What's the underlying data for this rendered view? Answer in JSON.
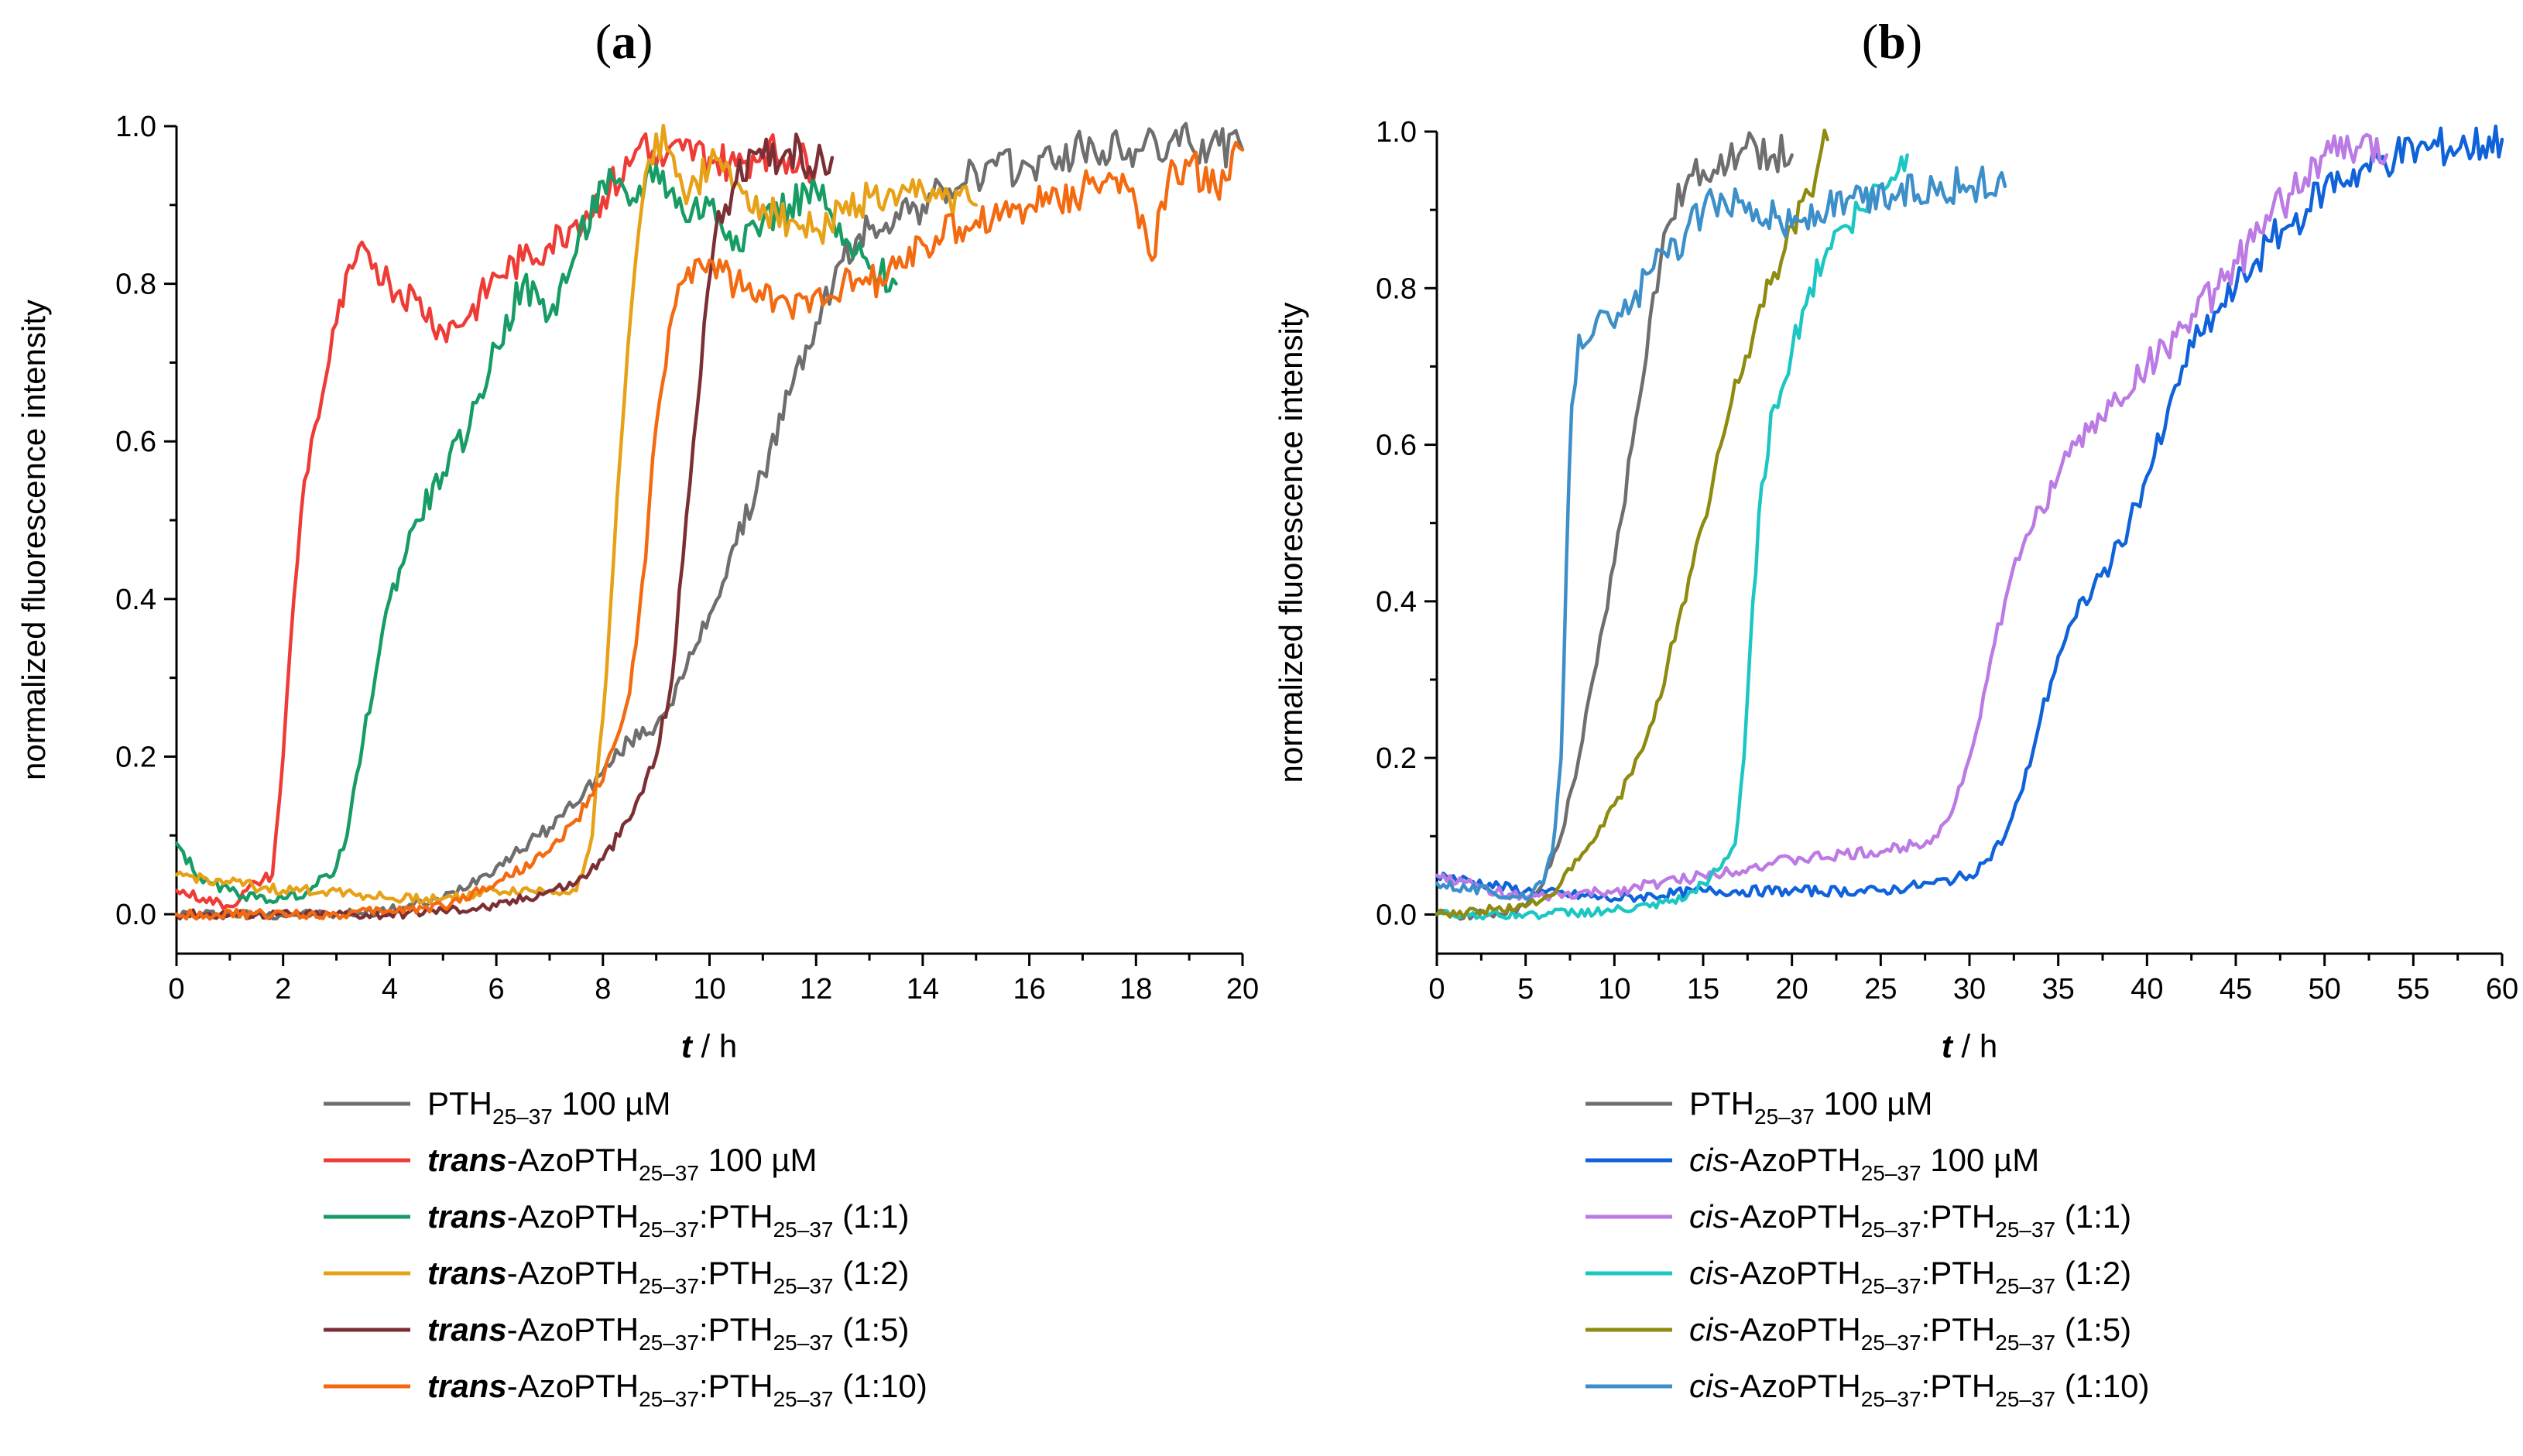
{
  "chart_data": [
    {
      "type": "line",
      "panel_label": "(a)",
      "panel_letter": "a",
      "xlabel_italic": "t",
      "xlabel_rest": " / h",
      "ylabel": "normalized fluorescence intensity",
      "xlim": [
        0,
        20
      ],
      "ylim": [
        -0.05,
        1.0
      ],
      "xticks": [
        "0",
        "2",
        "4",
        "6",
        "8",
        "10",
        "12",
        "14",
        "16",
        "18",
        "20"
      ],
      "yticks": [
        "0.0",
        "0.2",
        "0.4",
        "0.6",
        "0.8",
        "1.0"
      ],
      "legend_position": "bottom",
      "series": [
        {
          "name": "PTH25–37 100 µM",
          "legend": {
            "prefix": "",
            "main": "PTH",
            "sub": "25–37",
            "rest": " 100 µM",
            "sub2": "",
            "tail": ""
          },
          "color": "#6e6e6e",
          "x": [
            0,
            3,
            4,
            5,
            6,
            7,
            8,
            8.5,
            9,
            9.5,
            10,
            10.5,
            11,
            11.5,
            12,
            12.5,
            13,
            13.5,
            14,
            14.5,
            15,
            16,
            17,
            18,
            19,
            20
          ],
          "y": [
            0,
            0,
            0.005,
            0.02,
            0.06,
            0.11,
            0.18,
            0.22,
            0.24,
            0.3,
            0.38,
            0.47,
            0.56,
            0.66,
            0.75,
            0.83,
            0.87,
            0.89,
            0.9,
            0.92,
            0.94,
            0.95,
            0.97,
            0.97,
            0.98,
            0.97
          ]
        },
        {
          "name": "trans-AzoPTH25–37 100 µM",
          "legend": {
            "prefix": "trans",
            "main": "-AzoPTH",
            "sub": "25–37",
            "rest": " 100 µM",
            "sub2": "",
            "tail": ""
          },
          "color": "#ef3b36",
          "x": [
            0,
            0.5,
            1,
            1.5,
            1.8,
            2,
            2.2,
            2.4,
            2.6,
            2.8,
            3,
            3.3,
            3.6,
            4,
            4.5,
            5,
            5.5,
            6,
            6.5,
            7,
            7.5,
            8,
            8.5,
            8.8,
            9,
            9.5,
            10,
            10.5,
            11,
            11.5,
            12
          ],
          "y": [
            0.03,
            0.02,
            0.01,
            0.04,
            0.05,
            0.2,
            0.4,
            0.55,
            0.62,
            0.68,
            0.75,
            0.82,
            0.84,
            0.8,
            0.78,
            0.74,
            0.76,
            0.81,
            0.83,
            0.85,
            0.88,
            0.91,
            0.95,
            0.99,
            0.95,
            0.97,
            0.96,
            0.95,
            0.97,
            0.96,
            0.95
          ]
        },
        {
          "name": "trans-AzoPTH25–37:PTH25–37 (1:1)",
          "legend": {
            "prefix": "trans",
            "main": "-AzoPTH",
            "sub": "25–37",
            "rest": ":PTH",
            "sub2": "25–37",
            "tail": " (1:1)"
          },
          "color": "#169c64",
          "x": [
            0,
            0.5,
            1,
            1.5,
            2,
            2.5,
            3,
            3.2,
            3.5,
            3.8,
            4,
            4.5,
            5,
            5.5,
            6,
            6.5,
            7,
            7.5,
            8,
            8.5,
            9,
            9.5,
            10,
            10.5,
            11,
            11.5,
            12,
            12.5,
            13,
            13.5
          ],
          "y": [
            0.09,
            0.04,
            0.03,
            0.02,
            0.02,
            0.03,
            0.06,
            0.1,
            0.22,
            0.33,
            0.4,
            0.5,
            0.56,
            0.62,
            0.72,
            0.8,
            0.76,
            0.84,
            0.93,
            0.9,
            0.95,
            0.89,
            0.9,
            0.86,
            0.88,
            0.9,
            0.92,
            0.85,
            0.82,
            0.8
          ]
        },
        {
          "name": "trans-AzoPTH25–37:PTH25–37 (1:2)",
          "legend": {
            "prefix": "trans",
            "main": "-AzoPTH",
            "sub": "25–37",
            "rest": ":PTH",
            "sub2": "25–37",
            "tail": " (1:2)"
          },
          "color": "#e6a117",
          "x": [
            0,
            1,
            2,
            3,
            4,
            5,
            6,
            7,
            7.5,
            7.8,
            8,
            8.2,
            8.4,
            8.6,
            8.8,
            9,
            9.2,
            9.5,
            10,
            10.5,
            11,
            11.5,
            12,
            12.5,
            13,
            13.5,
            14,
            14.5,
            15
          ],
          "y": [
            0.05,
            0.04,
            0.03,
            0.03,
            0.02,
            0.02,
            0.03,
            0.03,
            0.03,
            0.1,
            0.25,
            0.45,
            0.65,
            0.82,
            0.94,
            0.99,
            0.97,
            0.92,
            0.95,
            0.93,
            0.9,
            0.88,
            0.87,
            0.89,
            0.91,
            0.9,
            0.92,
            0.91,
            0.9
          ]
        },
        {
          "name": "trans-AzoPTH25–37:PTH25–37 (1:5)",
          "legend": {
            "prefix": "trans",
            "main": "-AzoPTH",
            "sub": "25–37",
            "rest": ":PTH",
            "sub2": "25–37",
            "tail": " (1:5)"
          },
          "color": "#7b2f35",
          "x": [
            0,
            3,
            4,
            5,
            6,
            7,
            7.5,
            8,
            8.5,
            9,
            9.3,
            9.5,
            9.7,
            9.9,
            10.1,
            10.3,
            10.5,
            11,
            11.5,
            12,
            12.3
          ],
          "y": [
            0,
            0,
            0,
            0.005,
            0.01,
            0.03,
            0.04,
            0.07,
            0.12,
            0.2,
            0.3,
            0.45,
            0.6,
            0.75,
            0.86,
            0.9,
            0.93,
            0.96,
            0.97,
            0.95,
            0.96
          ]
        },
        {
          "name": "trans-AzoPTH25–37:PTH25–37 (1:10)",
          "legend": {
            "prefix": "trans",
            "main": "-AzoPTH",
            "sub": "25–37",
            "rest": ":PTH",
            "sub2": "25–37",
            "tail": " (1:10)"
          },
          "color": "#f46a10",
          "x": [
            0,
            3,
            4,
            5,
            6,
            7,
            7.5,
            8,
            8.5,
            8.8,
            9,
            9.3,
            9.6,
            10,
            10.5,
            11,
            11.5,
            12,
            12.5,
            13,
            13.5,
            14,
            15,
            16,
            17,
            17.5,
            18,
            18.3,
            18.6,
            19,
            19.5,
            20
          ],
          "y": [
            0,
            0,
            0.005,
            0.01,
            0.04,
            0.08,
            0.12,
            0.17,
            0.28,
            0.45,
            0.62,
            0.76,
            0.82,
            0.83,
            0.8,
            0.78,
            0.77,
            0.79,
            0.8,
            0.8,
            0.82,
            0.85,
            0.88,
            0.9,
            0.92,
            0.94,
            0.9,
            0.83,
            0.93,
            0.95,
            0.92,
            0.97
          ]
        }
      ]
    },
    {
      "type": "line",
      "panel_label": "(b)",
      "panel_letter": "b",
      "xlabel_italic": "t",
      "xlabel_rest": " / h",
      "ylabel": "normalized fluorescence intensity",
      "xlim": [
        0,
        60
      ],
      "ylim": [
        -0.05,
        1.0
      ],
      "xticks": [
        "0",
        "5",
        "10",
        "15",
        "20",
        "25",
        "30",
        "35",
        "40",
        "45",
        "50",
        "55",
        "60"
      ],
      "yticks": [
        "0.0",
        "0.2",
        "0.4",
        "0.6",
        "0.8",
        "1.0"
      ],
      "legend_position": "bottom",
      "series": [
        {
          "name": "PTH25–37 100 µM",
          "legend": {
            "prefix": "",
            "main": "PTH",
            "sub": "25–37",
            "rest": " 100 µM",
            "sub2": "",
            "tail": ""
          },
          "color": "#6e6e6e",
          "x": [
            0,
            3,
            5,
            6,
            7,
            8,
            9,
            10,
            11,
            12,
            13,
            14,
            15,
            16,
            17,
            18,
            19,
            20
          ],
          "y": [
            0,
            0,
            0.01,
            0.04,
            0.1,
            0.2,
            0.32,
            0.45,
            0.6,
            0.76,
            0.88,
            0.93,
            0.95,
            0.97,
            0.97,
            0.98,
            0.97,
            0.97
          ]
        },
        {
          "name": "cis-AzoPTH25–37 100 µM",
          "legend": {
            "prefix": "cis",
            "main": "-AzoPTH",
            "sub": "25–37",
            "rest": " 100 µM",
            "sub2": "",
            "tail": ""
          },
          "color": "#0f62d9",
          "x": [
            0,
            5,
            10,
            15,
            20,
            25,
            28,
            30,
            31,
            32,
            33,
            34,
            35,
            36,
            37,
            38,
            39,
            40,
            41,
            42,
            43,
            44,
            45,
            46,
            47,
            48,
            49,
            50,
            52,
            54,
            56,
            58,
            60
          ],
          "y": [
            0.05,
            0.03,
            0.02,
            0.03,
            0.03,
            0.03,
            0.04,
            0.05,
            0.07,
            0.1,
            0.16,
            0.25,
            0.33,
            0.38,
            0.42,
            0.45,
            0.5,
            0.56,
            0.62,
            0.7,
            0.74,
            0.77,
            0.8,
            0.83,
            0.86,
            0.88,
            0.9,
            0.93,
            0.95,
            0.97,
            0.98,
            0.98,
            0.99
          ]
        },
        {
          "name": "cis-AzoPTH25–37:PTH25–37 (1:1)",
          "legend": {
            "prefix": "cis",
            "main": "-AzoPTH",
            "sub": "25–37",
            "rest": ":PTH",
            "sub2": "25–37",
            "tail": " (1:1)"
          },
          "color": "#bc7ae4",
          "x": [
            0,
            5,
            10,
            15,
            20,
            25,
            27,
            28,
            29,
            30,
            31,
            32,
            33,
            34,
            35,
            36,
            38,
            40,
            42,
            44,
            46,
            48,
            50,
            52,
            53.5
          ],
          "y": [
            0.05,
            0.02,
            0.03,
            0.05,
            0.07,
            0.08,
            0.09,
            0.1,
            0.13,
            0.2,
            0.3,
            0.4,
            0.47,
            0.52,
            0.56,
            0.6,
            0.65,
            0.7,
            0.75,
            0.8,
            0.86,
            0.92,
            0.97,
            0.98,
            0.97
          ]
        },
        {
          "name": "cis-AzoPTH25–37:PTH25–37 (1:2)",
          "legend": {
            "prefix": "cis",
            "main": "-AzoPTH",
            "sub": "25–37",
            "rest": ":PTH",
            "sub2": "25–37",
            "tail": " (1:2)"
          },
          "color": "#1cc7c3",
          "x": [
            0,
            5,
            10,
            12,
            14,
            15,
            16,
            16.8,
            17.3,
            17.8,
            18.3,
            19,
            20,
            21,
            22,
            23,
            24,
            25,
            26,
            26.5
          ],
          "y": [
            0,
            0,
            0.005,
            0.01,
            0.02,
            0.04,
            0.06,
            0.09,
            0.2,
            0.4,
            0.55,
            0.65,
            0.72,
            0.8,
            0.85,
            0.88,
            0.9,
            0.93,
            0.95,
            0.97
          ]
        },
        {
          "name": "cis-AzoPTH25–37:PTH25–37 (1:5)",
          "legend": {
            "prefix": "cis",
            "main": "-AzoPTH",
            "sub": "25–37",
            "rest": ":PTH",
            "sub2": "25–37",
            "tail": " (1:5)"
          },
          "color": "#8e8b10",
          "x": [
            0,
            5,
            6,
            7,
            8,
            9,
            10,
            11,
            12,
            13,
            14,
            15,
            16,
            17,
            18,
            19,
            20,
            21,
            21.5,
            22
          ],
          "y": [
            0,
            0.01,
            0.02,
            0.04,
            0.07,
            0.1,
            0.14,
            0.18,
            0.24,
            0.32,
            0.4,
            0.5,
            0.6,
            0.68,
            0.76,
            0.82,
            0.88,
            0.92,
            0.96,
            0.99
          ]
        },
        {
          "name": "cis-AzoPTH25–37:PTH25–37 (1:10)",
          "legend": {
            "prefix": "cis",
            "main": "-AzoPTH",
            "sub": "25–37",
            "rest": ":PTH",
            "sub2": "25–37",
            "tail": " (1:10)"
          },
          "color": "#3d8fc9",
          "x": [
            0,
            3,
            5,
            6,
            6.5,
            7,
            7.3,
            7.6,
            8,
            9,
            10,
            11,
            12,
            13,
            14,
            15,
            16,
            17,
            18,
            20,
            22,
            24,
            26,
            28,
            30,
            32
          ],
          "y": [
            0.04,
            0.03,
            0.02,
            0.04,
            0.08,
            0.2,
            0.45,
            0.65,
            0.74,
            0.76,
            0.75,
            0.78,
            0.82,
            0.84,
            0.87,
            0.9,
            0.92,
            0.91,
            0.9,
            0.88,
            0.9,
            0.91,
            0.92,
            0.93,
            0.93,
            0.93
          ]
        }
      ]
    }
  ]
}
